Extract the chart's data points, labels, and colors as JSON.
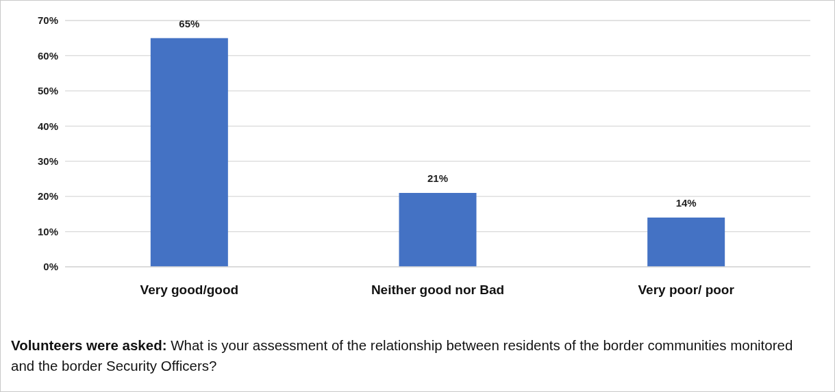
{
  "chart_data": {
    "type": "bar",
    "categories": [
      "Very good/good",
      "Neither good nor Bad",
      "Very poor/ poor"
    ],
    "values": [
      65,
      21,
      14
    ],
    "color": "#4472c4",
    "value_labels": [
      "65%",
      "21%",
      "14%"
    ],
    "ylim": [
      0,
      70
    ],
    "yticks": [
      {
        "value": 0,
        "label": "0%"
      },
      {
        "value": 10,
        "label": "10%"
      },
      {
        "value": 20,
        "label": "20%"
      },
      {
        "value": 30,
        "label": "30%"
      },
      {
        "value": 40,
        "label": "40%"
      },
      {
        "value": 50,
        "label": "50%"
      },
      {
        "value": 60,
        "label": "60%"
      },
      {
        "value": 70,
        "label": "70%"
      }
    ],
    "grid": "y",
    "annotations": [
      "Volunteers were asked: What is your assessment of the relationship between residents of the border communities monitored and the border Security Officers?"
    ]
  }
}
